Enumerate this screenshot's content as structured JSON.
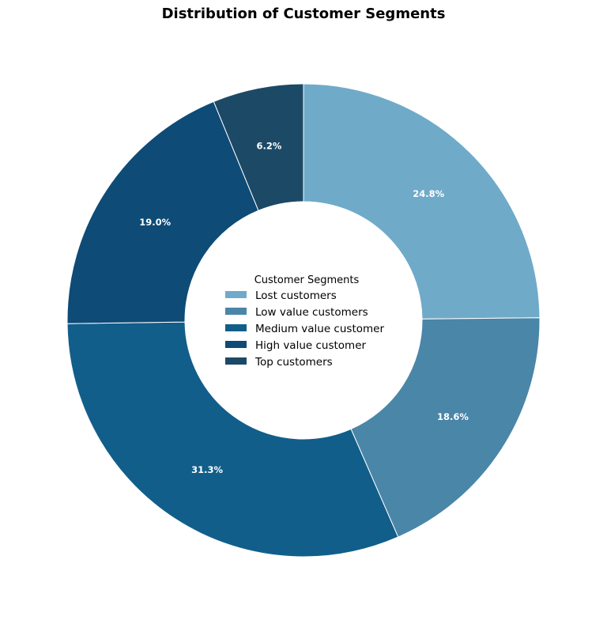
{
  "chart_data": {
    "type": "pie",
    "style": "donut",
    "title": "Distribution of Customer Segments",
    "legend_title": "Customer Segments",
    "legend_position": "center",
    "categories": [
      "Lost customers",
      "Low value customers",
      "Medium value customer",
      "High value customer",
      "Top customers"
    ],
    "values": [
      24.8,
      18.6,
      31.3,
      19.0,
      6.2
    ],
    "labels": [
      "24.8%",
      "18.6%",
      "31.3%",
      "19.0%",
      "6.2%"
    ],
    "colors": [
      "#6faac9",
      "#4a86a7",
      "#125e8a",
      "#0e4b76",
      "#1c4966"
    ]
  }
}
